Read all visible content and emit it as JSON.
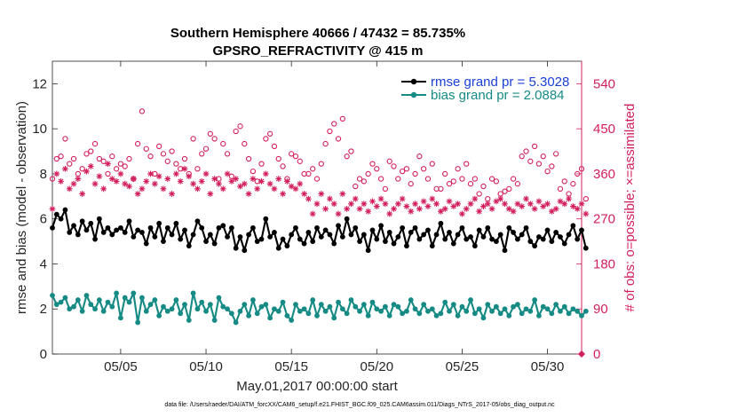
{
  "colors": {
    "rmse": "#000000",
    "bias": "#168a84",
    "obs": "#d21f5c",
    "legend_rmse_text": "#1a3fd6",
    "legend_bias_text": "#168a84",
    "axis": "#262626"
  },
  "chart_data": {
    "type": "line",
    "title": "Southern Hemisphere 40666 / 47432 = 85.735%",
    "subtitle": "GPSRO_REFRACTIVITY @ 415 m",
    "xlabel": "May.01,2017 00:00:00 start",
    "ylabel": "rmse and bias (model - observation)",
    "ylabel_right": "# of obs: o=possible; ×=assimilated",
    "footnote": "data file: /Users/raeder/DAI/ATM_forcXX/CAM6_setup/f.e21.FHIST_BGC.f09_025.CAM6assim.011/Diags_NTrS_2017-05/obs_diag_output.nc",
    "xlim": [
      1.0,
      32.0
    ],
    "ylim": [
      0,
      13
    ],
    "ylim_right": [
      0,
      585
    ],
    "x_ticks": [
      5,
      10,
      15,
      20,
      25,
      30
    ],
    "x_tick_labels": [
      "05/05",
      "05/10",
      "05/15",
      "05/20",
      "05/25",
      "05/30"
    ],
    "y_ticks": [
      0,
      2,
      4,
      6,
      8,
      10,
      12
    ],
    "y_tick_labels": [
      "0",
      "2",
      "4",
      "6",
      "8",
      "10",
      "12"
    ],
    "y_ticks_right": [
      0,
      90,
      180,
      270,
      360,
      450,
      540
    ],
    "y_tick_labels_right": [
      "0",
      "90",
      "180",
      "270",
      "360",
      "450",
      "540"
    ],
    "grid": false,
    "legend_placement": "top-right",
    "x_step": 0.25,
    "series": [
      {
        "name": "rmse grand pr = 5.3028",
        "axis": "left",
        "values": [
          5.6,
          6.2,
          6.0,
          6.4,
          5.4,
          5.7,
          5.3,
          5.9,
          5.5,
          5.8,
          5.1,
          6.0,
          5.4,
          5.6,
          5.3,
          5.5,
          5.6,
          5.4,
          5.9,
          5.2,
          5.5,
          5.4,
          4.9,
          5.6,
          5.2,
          5.8,
          5.0,
          5.6,
          5.3,
          5.8,
          5.1,
          5.5,
          4.8,
          5.3,
          5.9,
          5.6,
          5.0,
          5.3,
          4.9,
          5.6,
          5.7,
          5.2,
          5.6,
          4.7,
          5.2,
          4.6,
          5.3,
          5.6,
          5.0,
          5.1,
          6.0,
          5.2,
          5.4,
          4.7,
          5.1,
          4.8,
          5.3,
          5.6,
          5.1,
          4.9,
          5.4,
          5.0,
          5.6,
          5.2,
          5.5,
          5.3,
          4.9,
          5.7,
          5.2,
          6.0,
          5.3,
          5.6,
          5.0,
          5.3,
          4.6,
          5.5,
          5.1,
          5.7,
          5.0,
          5.4,
          4.9,
          5.2,
          5.6,
          4.8,
          5.4,
          5.6,
          5.1,
          5.3,
          5.5,
          4.8,
          5.3,
          5.8,
          5.1,
          5.4,
          4.9,
          5.3,
          5.6,
          5.1,
          5.2,
          4.8,
          5.5,
          5.2,
          5.6,
          5.1,
          5.0,
          5.3,
          4.6,
          5.6,
          5.4,
          5.1,
          5.3,
          5.6,
          5.0,
          4.8,
          5.2,
          5.1,
          5.5,
          5.0,
          5.4,
          5.2,
          4.9,
          5.3,
          5.7,
          5.1,
          5.5,
          4.7
        ],
        "marker": "dot"
      },
      {
        "name": "bias grand pr = 2.0884",
        "axis": "left",
        "values": [
          2.6,
          2.2,
          2.3,
          2.5,
          2.0,
          2.1,
          2.4,
          1.9,
          2.6,
          2.2,
          2.0,
          2.4,
          1.9,
          2.3,
          2.1,
          2.7,
          1.6,
          2.5,
          2.3,
          2.7,
          1.4,
          2.5,
          1.9,
          2.2,
          2.4,
          1.7,
          2.1,
          1.9,
          2.0,
          2.4,
          1.8,
          2.2,
          1.5,
          2.7,
          2.0,
          2.3,
          1.9,
          2.2,
          1.5,
          2.5,
          2.1,
          2.0,
          1.8,
          1.4,
          1.9,
          2.2,
          1.7,
          2.4,
          1.8,
          2.1,
          2.2,
          1.6,
          2.0,
          1.9,
          2.3,
          1.7,
          1.5,
          2.2,
          1.9,
          2.0,
          1.8,
          2.4,
          1.7,
          2.2,
          1.9,
          2.1,
          1.6,
          2.3,
          2.0,
          1.8,
          2.4,
          2.1,
          1.9,
          2.2,
          1.7,
          2.3,
          2.0,
          1.9,
          2.1,
          1.7,
          2.2,
          2.1,
          1.8,
          1.9,
          2.4,
          2.0,
          1.8,
          2.2,
          1.9,
          2.0,
          1.7,
          1.8,
          2.3,
          1.9,
          2.2,
          1.7,
          2.1,
          1.9,
          2.4,
          1.8,
          2.0,
          1.6,
          2.2,
          1.9,
          2.1,
          1.8,
          2.0,
          1.7,
          2.1,
          2.2,
          1.8,
          2.0,
          1.9,
          2.4,
          1.7,
          2.1,
          2.0,
          1.8,
          2.2,
          1.9,
          2.1,
          1.8,
          2.0,
          1.9,
          1.7,
          1.9
        ],
        "marker": "dot"
      },
      {
        "name": "possible",
        "axis": "right",
        "values": [
          350,
          390,
          395,
          430,
          380,
          390,
          360,
          370,
          400,
          405,
          420,
          390,
          385,
          360,
          395,
          370,
          380,
          375,
          390,
          350,
          420,
          485,
          410,
          395,
          360,
          415,
          400,
          385,
          405,
          380,
          370,
          390,
          360,
          430,
          370,
          400,
          410,
          440,
          430,
          350,
          420,
          400,
          355,
          445,
          455,
          420,
          390,
          365,
          345,
          380,
          430,
          440,
          415,
          390,
          375,
          350,
          400,
          395,
          385,
          360,
          360,
          370,
          350,
          380,
          420,
          445,
          460,
          430,
          470,
          395,
          405,
          335,
          350,
          345,
          360,
          380,
          370,
          350,
          330,
          385,
          375,
          350,
          365,
          370,
          340,
          360,
          395,
          370,
          350,
          380,
          330,
          330,
          360,
          340,
          345,
          370,
          350,
          380,
          340,
          350,
          320,
          335,
          310,
          350,
          345,
          320,
          325,
          330,
          350,
          340,
          395,
          405,
          385,
          415,
          380,
          395,
          365,
          375,
          400,
          330,
          345,
          320,
          340,
          360,
          370,
          310
        ],
        "marker": "circle"
      },
      {
        "name": "assimilated",
        "axis": "right",
        "values": [
          290,
          360,
          345,
          370,
          330,
          340,
          350,
          320,
          365,
          375,
          340,
          355,
          330,
          380,
          350,
          345,
          360,
          340,
          335,
          350,
          320,
          330,
          345,
          360,
          340,
          355,
          330,
          350,
          320,
          360,
          345,
          370,
          355,
          340,
          330,
          345,
          360,
          320,
          350,
          340,
          330,
          360,
          345,
          350,
          335,
          340,
          320,
          350,
          330,
          345,
          360,
          340,
          330,
          350,
          320,
          345,
          335,
          330,
          340,
          320,
          310,
          280,
          300,
          320,
          290,
          310,
          300,
          280,
          320,
          290,
          300,
          310,
          290,
          300,
          285,
          305,
          295,
          310,
          300,
          280,
          290,
          300,
          310,
          295,
          285,
          300,
          290,
          305,
          295,
          310,
          300,
          285,
          290,
          305,
          295,
          300,
          280,
          290,
          300,
          310,
          285,
          295,
          300,
          290,
          305,
          310,
          300,
          290,
          285,
          300,
          295,
          310,
          300,
          290,
          305,
          295,
          300,
          285,
          290,
          305,
          300,
          310,
          295,
          290,
          300,
          280
        ],
        "marker": "asterisk"
      }
    ]
  }
}
